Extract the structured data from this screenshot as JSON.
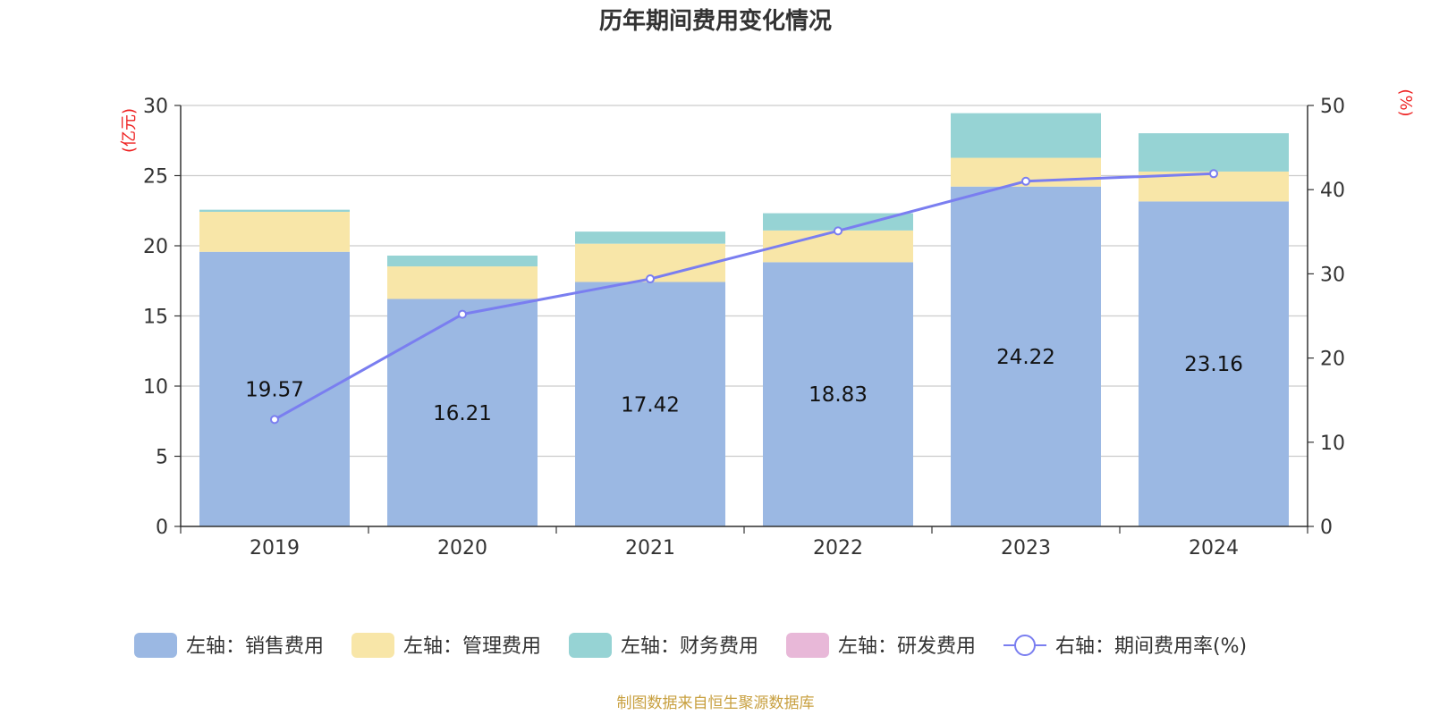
{
  "chart_data": {
    "type": "bar",
    "title": "历年期间费用变化情况",
    "categories": [
      "2019",
      "2020",
      "2021",
      "2022",
      "2023",
      "2024"
    ],
    "left_axis": {
      "unit": "(亿元)",
      "ticks": [
        "0",
        "5",
        "10",
        "15",
        "20",
        "25",
        "30"
      ],
      "ylim": [
        0,
        30
      ]
    },
    "right_axis": {
      "unit": "(%)",
      "ticks": [
        "0",
        "10",
        "20",
        "30",
        "40",
        "50"
      ],
      "ylim": [
        0,
        50
      ]
    },
    "series": [
      {
        "name": "左轴：销售费用",
        "type": "bar",
        "stack": "left",
        "color": "#9bb8e3",
        "values": [
          19.57,
          16.21,
          17.42,
          18.83,
          24.22,
          23.16
        ]
      },
      {
        "name": "左轴：管理费用",
        "type": "bar",
        "stack": "left",
        "color": "#f8e6a8",
        "values": [
          2.85,
          2.32,
          2.73,
          2.26,
          2.05,
          2.13
        ]
      },
      {
        "name": "左轴：财务费用",
        "type": "bar",
        "stack": "left",
        "color": "#96d3d4",
        "values": [
          0.15,
          0.77,
          0.86,
          1.23,
          3.18,
          2.73
        ]
      },
      {
        "name": "左轴：研发费用",
        "type": "bar",
        "stack": "left",
        "color": "#e8b8d8",
        "values": [
          0.0,
          0.0,
          0.0,
          0.0,
          0.0,
          0.0
        ]
      },
      {
        "name": "右轴：期间费用率(%)",
        "type": "line",
        "axis": "right",
        "color": "#7a7ef0",
        "values": [
          12.7,
          25.2,
          29.4,
          35.1,
          41.0,
          41.9
        ]
      }
    ],
    "data_labels": [
      "19.57",
      "16.21",
      "17.42",
      "18.83",
      "24.22",
      "23.16"
    ],
    "grid": true,
    "legend_position": "bottom"
  },
  "source": {
    "text": "制图数据来自恒生聚源数据库",
    "color": "#c8a040"
  }
}
